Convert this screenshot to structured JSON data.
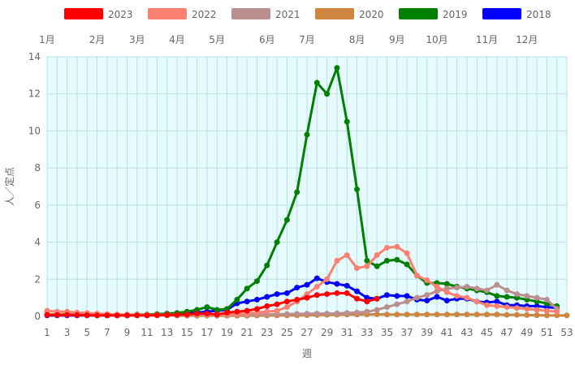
{
  "chart_data": {
    "type": "line",
    "title": "",
    "xlabel": "週",
    "ylabel": "人／定点",
    "xlim": [
      1,
      53
    ],
    "ylim": [
      0,
      14
    ],
    "x_ticks": [
      1,
      3,
      5,
      7,
      9,
      11,
      13,
      15,
      17,
      19,
      21,
      23,
      25,
      27,
      29,
      31,
      33,
      35,
      37,
      39,
      41,
      43,
      45,
      47,
      49,
      51,
      53
    ],
    "y_ticks": [
      0,
      2,
      4,
      6,
      8,
      10,
      12,
      14
    ],
    "grid": true,
    "legend_position": "top-center",
    "plot_background": "#e6fbfd",
    "grid_color": "#bcdfe6",
    "months": [
      {
        "label": "1月",
        "week": 1
      },
      {
        "label": "2月",
        "week": 6
      },
      {
        "label": "3月",
        "week": 10
      },
      {
        "label": "4月",
        "week": 14
      },
      {
        "label": "5月",
        "week": 18
      },
      {
        "label": "6月",
        "week": 23
      },
      {
        "label": "7月",
        "week": 27
      },
      {
        "label": "8月",
        "week": 32
      },
      {
        "label": "9月",
        "week": 36
      },
      {
        "label": "10月",
        "week": 40
      },
      {
        "label": "11月",
        "week": 45
      },
      {
        "label": "12月",
        "week": 49
      }
    ],
    "series": [
      {
        "name": "2023",
        "color": "#ff0000",
        "x": [
          1,
          2,
          3,
          4,
          5,
          6,
          7,
          8,
          9,
          10,
          11,
          12,
          13,
          14,
          15,
          16,
          17,
          18,
          19,
          20,
          21,
          22,
          23,
          24,
          25,
          26,
          27,
          28,
          29,
          30,
          31,
          32,
          33,
          34
        ],
        "values": [
          0.08,
          0.07,
          0.08,
          0.07,
          0.06,
          0.05,
          0.05,
          0.05,
          0.05,
          0.05,
          0.05,
          0.06,
          0.07,
          0.08,
          0.1,
          0.15,
          0.15,
          0.1,
          0.2,
          0.25,
          0.3,
          0.4,
          0.55,
          0.65,
          0.8,
          0.9,
          1.0,
          1.15,
          1.2,
          1.25,
          1.25,
          0.95,
          0.8,
          0.95
        ]
      },
      {
        "name": "2022",
        "color": "#fa8072",
        "x": [
          1,
          2,
          3,
          4,
          5,
          6,
          7,
          8,
          9,
          10,
          11,
          12,
          13,
          14,
          15,
          16,
          17,
          18,
          19,
          20,
          21,
          22,
          23,
          24,
          25,
          26,
          27,
          28,
          29,
          30,
          31,
          32,
          33,
          34,
          35,
          36,
          37,
          38,
          39,
          40,
          41,
          42,
          43,
          44,
          45,
          46,
          47,
          48,
          49,
          50,
          51,
          52
        ],
        "values": [
          0.3,
          0.25,
          0.25,
          0.2,
          0.18,
          0.15,
          0.12,
          0.1,
          0.1,
          0.08,
          0.08,
          0.08,
          0.08,
          0.08,
          0.08,
          0.1,
          0.1,
          0.1,
          0.1,
          0.12,
          0.15,
          0.2,
          0.25,
          0.3,
          0.5,
          0.8,
          1.2,
          1.6,
          2.0,
          3.0,
          3.3,
          2.6,
          2.7,
          3.3,
          3.7,
          3.75,
          3.4,
          2.2,
          1.95,
          1.6,
          1.3,
          1.1,
          1.0,
          0.8,
          0.6,
          0.55,
          0.5,
          0.45,
          0.4,
          0.35,
          0.3,
          0.25
        ]
      },
      {
        "name": "2021",
        "color": "#bc8f8f",
        "x": [
          1,
          2,
          3,
          4,
          5,
          6,
          7,
          8,
          9,
          10,
          11,
          12,
          13,
          14,
          15,
          16,
          17,
          18,
          19,
          20,
          21,
          22,
          23,
          24,
          25,
          26,
          27,
          28,
          29,
          30,
          31,
          32,
          33,
          34,
          35,
          36,
          37,
          38,
          39,
          40,
          41,
          42,
          43,
          44,
          45,
          46,
          47,
          48,
          49,
          50,
          51,
          52
        ],
        "values": [
          0.1,
          0.08,
          0.08,
          0.08,
          0.07,
          0.06,
          0.05,
          0.05,
          0.05,
          0.05,
          0.05,
          0.05,
          0.05,
          0.05,
          0.05,
          0.06,
          0.06,
          0.07,
          0.08,
          0.08,
          0.09,
          0.1,
          0.1,
          0.11,
          0.12,
          0.13,
          0.14,
          0.15,
          0.15,
          0.16,
          0.18,
          0.2,
          0.25,
          0.35,
          0.5,
          0.65,
          0.8,
          1.0,
          1.15,
          1.35,
          1.5,
          1.55,
          1.6,
          1.5,
          1.4,
          1.7,
          1.4,
          1.2,
          1.1,
          1.0,
          0.9,
          0.4
        ]
      },
      {
        "name": "2020",
        "color": "#cd853f",
        "x": [
          1,
          2,
          3,
          4,
          5,
          6,
          7,
          8,
          9,
          10,
          11,
          12,
          13,
          14,
          15,
          16,
          17,
          18,
          19,
          20,
          21,
          22,
          23,
          24,
          25,
          26,
          27,
          28,
          29,
          30,
          31,
          32,
          33,
          34,
          35,
          36,
          37,
          38,
          39,
          40,
          41,
          42,
          43,
          44,
          45,
          46,
          47,
          48,
          49,
          50,
          51,
          52,
          53
        ],
        "values": [
          0.12,
          0.1,
          0.1,
          0.09,
          0.08,
          0.08,
          0.08,
          0.07,
          0.07,
          0.07,
          0.06,
          0.06,
          0.05,
          0.04,
          0.03,
          0.03,
          0.03,
          0.03,
          0.03,
          0.03,
          0.03,
          0.04,
          0.04,
          0.05,
          0.05,
          0.05,
          0.06,
          0.07,
          0.08,
          0.09,
          0.1,
          0.1,
          0.1,
          0.11,
          0.1,
          0.1,
          0.1,
          0.1,
          0.1,
          0.1,
          0.1,
          0.1,
          0.1,
          0.1,
          0.1,
          0.1,
          0.08,
          0.08,
          0.07,
          0.06,
          0.05,
          0.05,
          0.05
        ]
      },
      {
        "name": "2019",
        "color": "#008000",
        "x": [
          1,
          2,
          3,
          4,
          5,
          6,
          7,
          8,
          9,
          10,
          11,
          12,
          13,
          14,
          15,
          16,
          17,
          18,
          19,
          20,
          21,
          22,
          23,
          24,
          25,
          26,
          27,
          28,
          29,
          30,
          31,
          32,
          33,
          34,
          35,
          36,
          37,
          38,
          39,
          40,
          41,
          42,
          43,
          44,
          45,
          46,
          47,
          48,
          49,
          50,
          51,
          52
        ],
        "values": [
          0.1,
          0.1,
          0.1,
          0.08,
          0.08,
          0.07,
          0.07,
          0.08,
          0.09,
          0.1,
          0.1,
          0.12,
          0.15,
          0.18,
          0.25,
          0.35,
          0.5,
          0.35,
          0.4,
          0.9,
          1.5,
          1.9,
          2.75,
          4.0,
          5.2,
          6.7,
          9.8,
          12.6,
          12.0,
          13.4,
          10.5,
          6.85,
          3.0,
          2.7,
          3.0,
          3.05,
          2.8,
          2.2,
          1.8,
          1.8,
          1.75,
          1.6,
          1.5,
          1.4,
          1.3,
          1.1,
          1.05,
          1.0,
          0.9,
          0.8,
          0.7,
          0.55
        ]
      },
      {
        "name": "2018",
        "color": "#0000ff",
        "x": [
          1,
          2,
          3,
          4,
          5,
          6,
          7,
          8,
          9,
          10,
          11,
          12,
          13,
          14,
          15,
          16,
          17,
          18,
          19,
          20,
          21,
          22,
          23,
          24,
          25,
          26,
          27,
          28,
          29,
          30,
          31,
          32,
          33,
          34,
          35,
          36,
          37,
          38,
          39,
          40,
          41,
          42,
          43,
          44,
          45,
          46,
          47,
          48,
          49,
          50,
          51,
          52
        ],
        "values": [
          0.05,
          0.05,
          0.05,
          0.05,
          0.05,
          0.05,
          0.05,
          0.05,
          0.05,
          0.06,
          0.07,
          0.08,
          0.1,
          0.12,
          0.15,
          0.2,
          0.25,
          0.3,
          0.35,
          0.7,
          0.8,
          0.9,
          1.05,
          1.2,
          1.25,
          1.55,
          1.7,
          2.05,
          1.85,
          1.75,
          1.65,
          1.35,
          1.0,
          0.95,
          1.15,
          1.1,
          1.1,
          0.9,
          0.85,
          1.05,
          0.85,
          0.95,
          0.95,
          0.8,
          0.75,
          0.8,
          0.6,
          0.6,
          0.55,
          0.55,
          0.5,
          0.45
        ]
      }
    ]
  }
}
